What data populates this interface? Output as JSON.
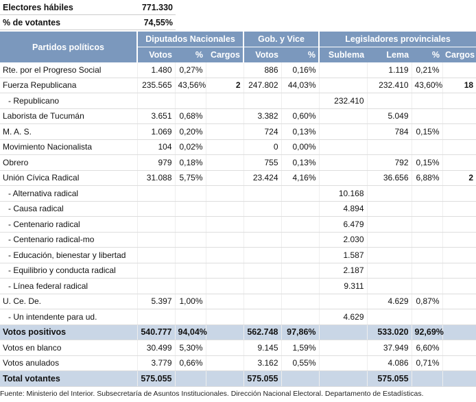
{
  "summary": [
    [
      "Electores hábiles",
      "771.330"
    ],
    [
      "% de votantes",
      "74,55%"
    ]
  ],
  "table": {
    "name_header": "Partidos políticos",
    "groups": [
      {
        "label": "Diputados Nacionales",
        "columns": [
          "Votos",
          "%",
          "Cargos"
        ]
      },
      {
        "label": "Gob. y Vice",
        "columns": [
          "Votos",
          "%"
        ]
      },
      {
        "label": "Legisladores provinciales",
        "columns": [
          "Sublema",
          "Lema",
          "%",
          "Cargos"
        ]
      }
    ],
    "rows": [
      {
        "cells": [
          "Rte. por el Progreso Social",
          "1.480",
          "0,27%",
          null,
          "886",
          "0,16%",
          null,
          "1.119",
          "0,21%",
          null
        ]
      },
      {
        "cells": [
          "Fuerza Republicana",
          "235.565",
          "43,56%",
          "2",
          "247.802",
          "44,03%",
          null,
          "232.410",
          "43,60%",
          "18"
        ]
      },
      {
        "cells": [
          "- Republicano",
          null,
          null,
          null,
          null,
          null,
          "232.410",
          null,
          null,
          null
        ]
      },
      {
        "cells": [
          "Laborista de Tucumán",
          "3.651",
          "0,68%",
          null,
          "3.382",
          "0,60%",
          null,
          "5.049",
          null,
          null
        ]
      },
      {
        "cells": [
          "M. A. S.",
          "1.069",
          "0,20%",
          null,
          "724",
          "0,13%",
          null,
          "784",
          "0,15%",
          null
        ]
      },
      {
        "cells": [
          "Movimiento Nacionalista",
          "104",
          "0,02%",
          null,
          "0",
          "0,00%",
          null,
          null,
          null,
          null
        ]
      },
      {
        "cells": [
          "Obrero",
          "979",
          "0,18%",
          null,
          "755",
          "0,13%",
          null,
          "792",
          "0,15%",
          null
        ]
      },
      {
        "cells": [
          "Unión Cívica Radical",
          "31.088",
          "5,75%",
          null,
          "23.424",
          "4,16%",
          null,
          "36.656",
          "6,88%",
          "2"
        ]
      },
      {
        "cells": [
          "- Alternativa radical",
          null,
          null,
          null,
          null,
          null,
          "10.168",
          null,
          null,
          null
        ]
      },
      {
        "cells": [
          "- Causa radical",
          null,
          null,
          null,
          null,
          null,
          "4.894",
          null,
          null,
          null
        ]
      },
      {
        "cells": [
          "- Centenario radical",
          null,
          null,
          null,
          null,
          null,
          "6.479",
          null,
          null,
          null
        ]
      },
      {
        "cells": [
          "- Centenario radical-mo",
          null,
          null,
          null,
          null,
          null,
          "2.030",
          null,
          null,
          null
        ]
      },
      {
        "cells": [
          "- Educación, bienestar y libertad",
          null,
          null,
          null,
          null,
          null,
          "1.587",
          null,
          null,
          null
        ]
      },
      {
        "cells": [
          "- Equilibrio y conducta radical",
          null,
          null,
          null,
          null,
          null,
          "2.187",
          null,
          null,
          null
        ]
      },
      {
        "cells": [
          "- Línea federal radical",
          null,
          null,
          null,
          null,
          null,
          "9.311",
          null,
          null,
          null
        ]
      },
      {
        "cells": [
          "U. Ce. De.",
          "5.397",
          "1,00%",
          null,
          null,
          null,
          null,
          "4.629",
          "0,87%",
          null
        ]
      },
      {
        "cells": [
          "- Un intendente para ud.",
          null,
          null,
          null,
          null,
          null,
          "4.629",
          null,
          null,
          null
        ]
      },
      {
        "cells": [
          "Votos positivos",
          "540.777",
          "94,04%",
          null,
          "562.748",
          "97,86%",
          null,
          "533.020",
          "92,69%",
          null
        ],
        "emphasis": true
      },
      {
        "cells": [
          "Votos en blanco",
          "30.499",
          "5,30%",
          null,
          "9.145",
          "1,59%",
          null,
          "37.949",
          "6,60%",
          null
        ]
      },
      {
        "cells": [
          "Votos anulados",
          "3.779",
          "0,66%",
          null,
          "3.162",
          "0,55%",
          null,
          "4.086",
          "0,71%",
          null
        ]
      },
      {
        "cells": [
          "Total  votantes",
          "575.055",
          null,
          null,
          "575.055",
          null,
          null,
          "575.055",
          null,
          null
        ],
        "emphasis": true
      }
    ]
  },
  "footer": "Fuente: Ministerio del Interior. Subsecretaría de Asuntos Institucionales. Dirección Nacional Electoral. Departamento de Estadísticas."
}
